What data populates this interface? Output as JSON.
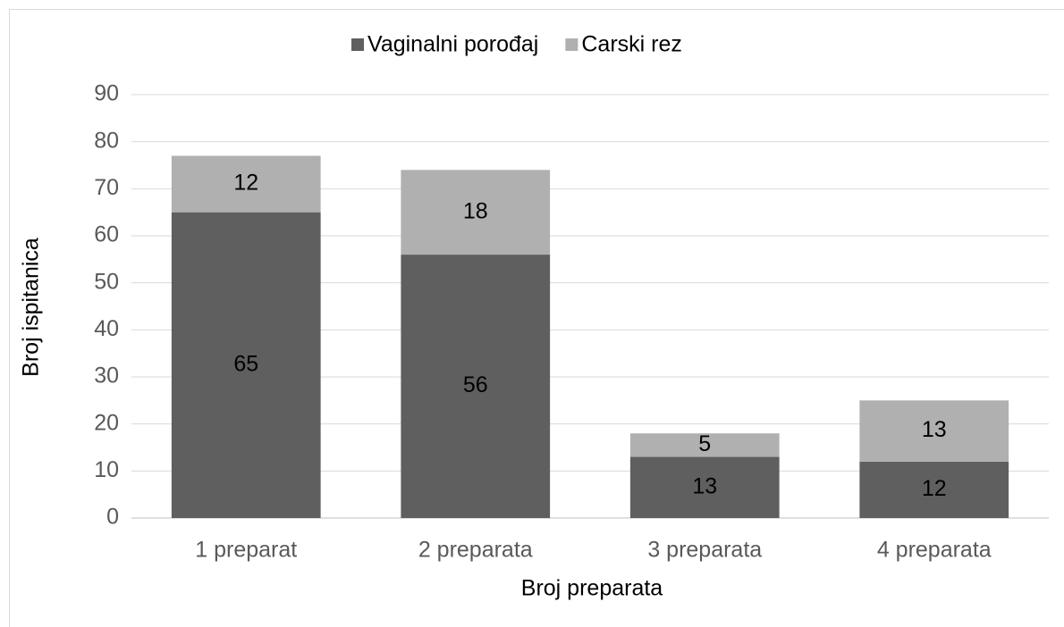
{
  "chart_data": {
    "type": "stacked_bar",
    "categories": [
      "1 preparat",
      "2 preparata",
      "3 preparata",
      "4 preparata"
    ],
    "series": [
      {
        "name": "Vaginalni porođaj",
        "color": "#5f5f5f",
        "values": [
          65,
          56,
          13,
          12
        ]
      },
      {
        "name": "Carski rez",
        "color": "#b0b0b0",
        "values": [
          12,
          18,
          5,
          13
        ]
      }
    ],
    "ylim": [
      0,
      90
    ],
    "yticks": [
      0,
      10,
      20,
      30,
      40,
      50,
      60,
      70,
      80,
      90
    ],
    "x_label": "Broj preparata",
    "y_label": "Broj ispitanica",
    "grid": true,
    "legend": "top"
  }
}
